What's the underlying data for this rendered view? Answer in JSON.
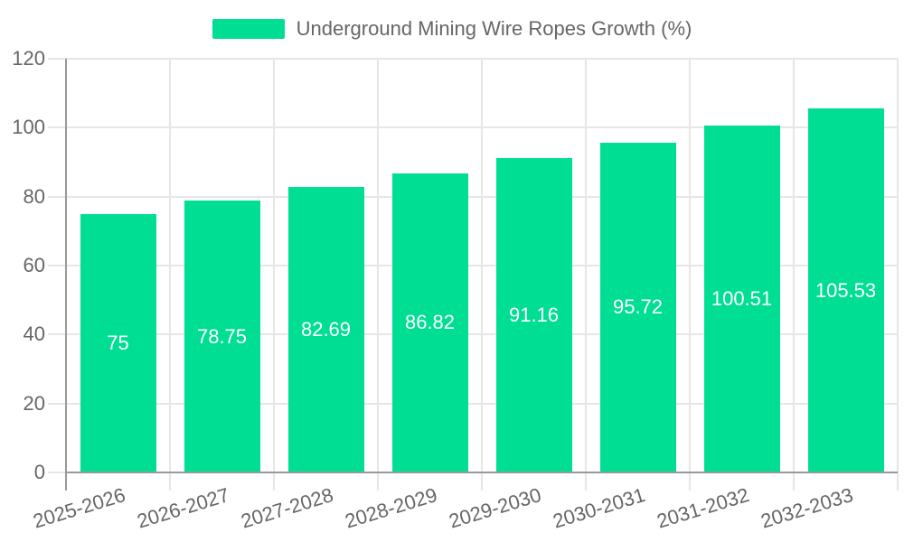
{
  "legend": {
    "label": "Underground Mining Wire Ropes Growth (%)"
  },
  "chart_data": {
    "type": "bar",
    "title": "",
    "categories": [
      "2025-2026",
      "2026-2027",
      "2027-2028",
      "2028-2029",
      "2029-2030",
      "2030-2031",
      "2031-2032",
      "2032-2033"
    ],
    "values": [
      75,
      78.75,
      82.69,
      86.82,
      91.16,
      95.72,
      100.51,
      105.53
    ],
    "series_name": "Underground Mining Wire Ropes Growth (%)",
    "xlabel": "",
    "ylabel": "",
    "ylim": [
      0,
      120
    ],
    "yticks": [
      0,
      20,
      40,
      60,
      80,
      100,
      120
    ],
    "grid": true,
    "legend_position": "top",
    "value_labels_position": "inside-center",
    "bar_color": "#00DE94",
    "value_label_color": "#ffffff",
    "axis_text_color": "#666666",
    "grid_color": "#e6e6e6",
    "axis_line_color": "#999999"
  }
}
